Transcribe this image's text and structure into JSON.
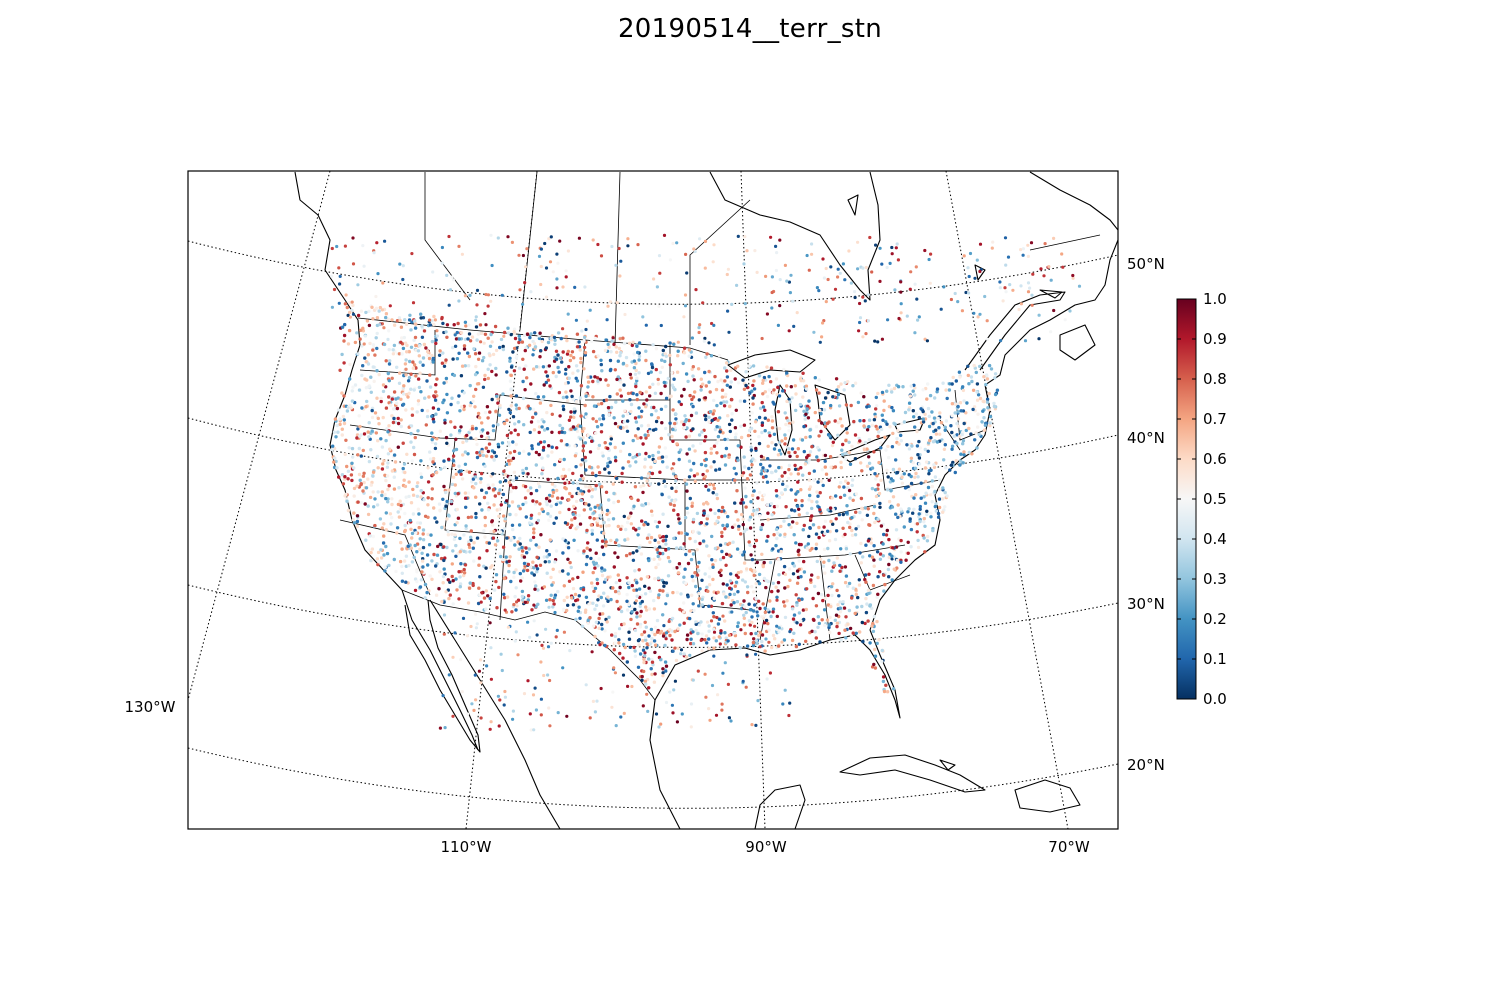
{
  "title": "20190514__terr_stn",
  "map": {
    "projection": "lambert-conformal",
    "meridian_labels": [
      "130°W",
      "110°W",
      "90°W",
      "70°W"
    ],
    "parallel_labels": [
      "50°N",
      "40°N",
      "30°N",
      "20°N"
    ],
    "frame_color": "#000000",
    "graticule_style": "dotted"
  },
  "colorbar": {
    "colormap": "RdBu_r",
    "min": 0.0,
    "max": 1.0,
    "tick_labels": [
      "1.0",
      "0.9",
      "0.8",
      "0.7",
      "0.6",
      "0.5",
      "0.4",
      "0.3",
      "0.2",
      "0.1",
      "0.0"
    ],
    "stops": [
      "#053061",
      "#2166ac",
      "#4393c3",
      "#92c5de",
      "#d1e5f0",
      "#f7f7f7",
      "#fddbc7",
      "#f4a582",
      "#d6604d",
      "#b2182b",
      "#67001f"
    ]
  },
  "chart_data": {
    "type": "scatter",
    "title": "20190514__terr_stn",
    "description_value_range": [
      0.0,
      1.0
    ],
    "xlabel": "",
    "ylabel": "",
    "x_ticks": [
      "130°W",
      "110°W",
      "90°W",
      "70°W"
    ],
    "y_ticks": [
      "50°N",
      "40°N",
      "30°N",
      "20°N"
    ],
    "grid": true
  }
}
